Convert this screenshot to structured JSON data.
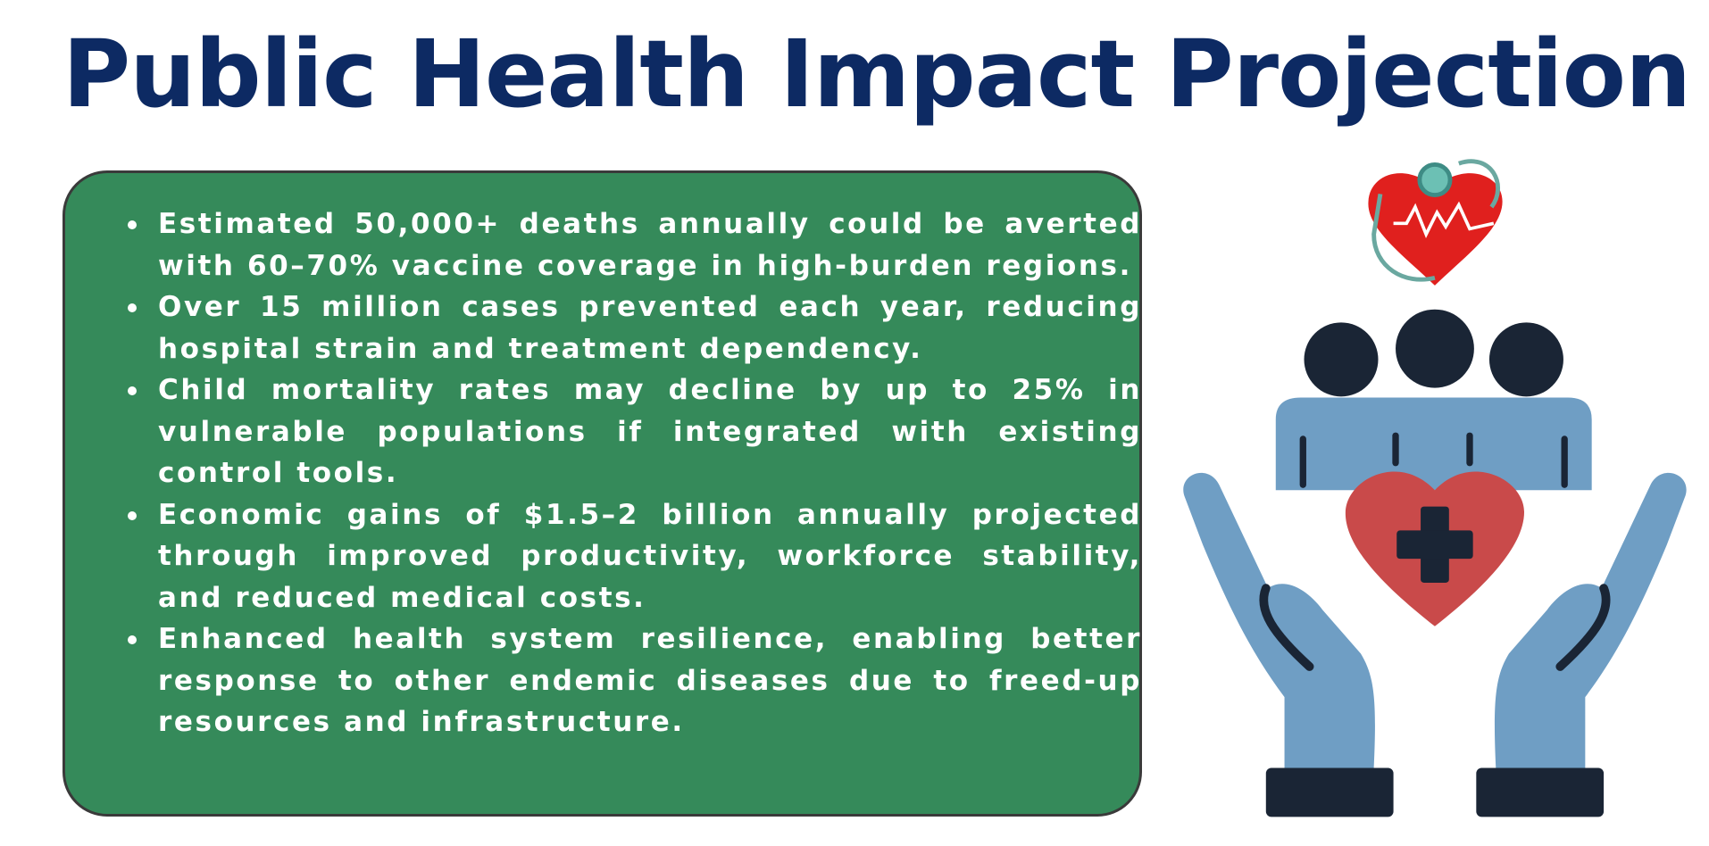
{
  "header": {
    "title": "Public Health Impact Projection"
  },
  "bullets": [
    "Estimated 50,000+ deaths annually could be averted with 60–70% vaccine coverage in high-burden regions.",
    "Over 15 million cases prevented each year, reducing hospital strain and treatment dependency.",
    "Child mortality rates may decline by up to 25% in vulnerable populations if integrated with existing control tools.",
    "Economic gains of $1.5–2 billion annually projected through improved productivity, workforce stability, and reduced medical costs.",
    "Enhanced health system resilience, enabling better response to other endemic diseases due to freed-up resources and infrastructure."
  ]
}
